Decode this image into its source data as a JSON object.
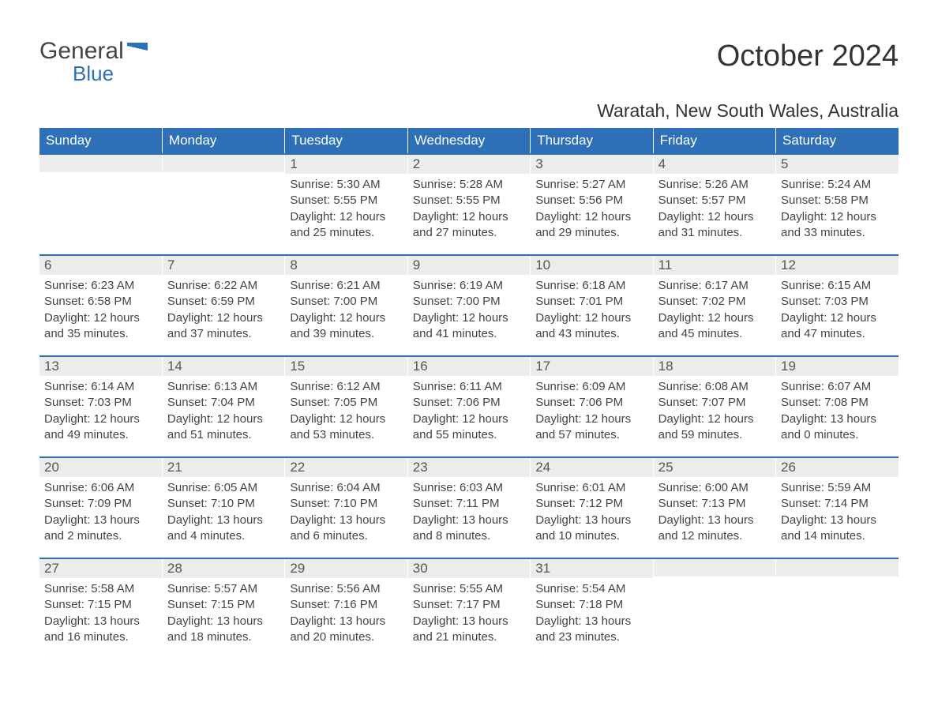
{
  "logo": {
    "general": "General",
    "blue": "Blue",
    "flag_color": "#2d70b7"
  },
  "title": "October 2024",
  "location": "Waratah, New South Wales, Australia",
  "colors": {
    "header_bg": "#2d70b7",
    "header_text": "#ffffff",
    "daynum_bg": "#ececec",
    "body_text": "#444444",
    "border_top": "#2d70b7",
    "background": "#ffffff"
  },
  "weekdays": [
    "Sunday",
    "Monday",
    "Tuesday",
    "Wednesday",
    "Thursday",
    "Friday",
    "Saturday"
  ],
  "labels": {
    "sunrise": "Sunrise: ",
    "sunset": "Sunset: ",
    "daylight": "Daylight: "
  },
  "weeks": [
    [
      {
        "day": "",
        "sunrise": "",
        "sunset": "",
        "daylight": ""
      },
      {
        "day": "",
        "sunrise": "",
        "sunset": "",
        "daylight": ""
      },
      {
        "day": "1",
        "sunrise": "5:30 AM",
        "sunset": "5:55 PM",
        "daylight": "12 hours and 25 minutes."
      },
      {
        "day": "2",
        "sunrise": "5:28 AM",
        "sunset": "5:55 PM",
        "daylight": "12 hours and 27 minutes."
      },
      {
        "day": "3",
        "sunrise": "5:27 AM",
        "sunset": "5:56 PM",
        "daylight": "12 hours and 29 minutes."
      },
      {
        "day": "4",
        "sunrise": "5:26 AM",
        "sunset": "5:57 PM",
        "daylight": "12 hours and 31 minutes."
      },
      {
        "day": "5",
        "sunrise": "5:24 AM",
        "sunset": "5:58 PM",
        "daylight": "12 hours and 33 minutes."
      }
    ],
    [
      {
        "day": "6",
        "sunrise": "6:23 AM",
        "sunset": "6:58 PM",
        "daylight": "12 hours and 35 minutes."
      },
      {
        "day": "7",
        "sunrise": "6:22 AM",
        "sunset": "6:59 PM",
        "daylight": "12 hours and 37 minutes."
      },
      {
        "day": "8",
        "sunrise": "6:21 AM",
        "sunset": "7:00 PM",
        "daylight": "12 hours and 39 minutes."
      },
      {
        "day": "9",
        "sunrise": "6:19 AM",
        "sunset": "7:00 PM",
        "daylight": "12 hours and 41 minutes."
      },
      {
        "day": "10",
        "sunrise": "6:18 AM",
        "sunset": "7:01 PM",
        "daylight": "12 hours and 43 minutes."
      },
      {
        "day": "11",
        "sunrise": "6:17 AM",
        "sunset": "7:02 PM",
        "daylight": "12 hours and 45 minutes."
      },
      {
        "day": "12",
        "sunrise": "6:15 AM",
        "sunset": "7:03 PM",
        "daylight": "12 hours and 47 minutes."
      }
    ],
    [
      {
        "day": "13",
        "sunrise": "6:14 AM",
        "sunset": "7:03 PM",
        "daylight": "12 hours and 49 minutes."
      },
      {
        "day": "14",
        "sunrise": "6:13 AM",
        "sunset": "7:04 PM",
        "daylight": "12 hours and 51 minutes."
      },
      {
        "day": "15",
        "sunrise": "6:12 AM",
        "sunset": "7:05 PM",
        "daylight": "12 hours and 53 minutes."
      },
      {
        "day": "16",
        "sunrise": "6:11 AM",
        "sunset": "7:06 PM",
        "daylight": "12 hours and 55 minutes."
      },
      {
        "day": "17",
        "sunrise": "6:09 AM",
        "sunset": "7:06 PM",
        "daylight": "12 hours and 57 minutes."
      },
      {
        "day": "18",
        "sunrise": "6:08 AM",
        "sunset": "7:07 PM",
        "daylight": "12 hours and 59 minutes."
      },
      {
        "day": "19",
        "sunrise": "6:07 AM",
        "sunset": "7:08 PM",
        "daylight": "13 hours and 0 minutes."
      }
    ],
    [
      {
        "day": "20",
        "sunrise": "6:06 AM",
        "sunset": "7:09 PM",
        "daylight": "13 hours and 2 minutes."
      },
      {
        "day": "21",
        "sunrise": "6:05 AM",
        "sunset": "7:10 PM",
        "daylight": "13 hours and 4 minutes."
      },
      {
        "day": "22",
        "sunrise": "6:04 AM",
        "sunset": "7:10 PM",
        "daylight": "13 hours and 6 minutes."
      },
      {
        "day": "23",
        "sunrise": "6:03 AM",
        "sunset": "7:11 PM",
        "daylight": "13 hours and 8 minutes."
      },
      {
        "day": "24",
        "sunrise": "6:01 AM",
        "sunset": "7:12 PM",
        "daylight": "13 hours and 10 minutes."
      },
      {
        "day": "25",
        "sunrise": "6:00 AM",
        "sunset": "7:13 PM",
        "daylight": "13 hours and 12 minutes."
      },
      {
        "day": "26",
        "sunrise": "5:59 AM",
        "sunset": "7:14 PM",
        "daylight": "13 hours and 14 minutes."
      }
    ],
    [
      {
        "day": "27",
        "sunrise": "5:58 AM",
        "sunset": "7:15 PM",
        "daylight": "13 hours and 16 minutes."
      },
      {
        "day": "28",
        "sunrise": "5:57 AM",
        "sunset": "7:15 PM",
        "daylight": "13 hours and 18 minutes."
      },
      {
        "day": "29",
        "sunrise": "5:56 AM",
        "sunset": "7:16 PM",
        "daylight": "13 hours and 20 minutes."
      },
      {
        "day": "30",
        "sunrise": "5:55 AM",
        "sunset": "7:17 PM",
        "daylight": "13 hours and 21 minutes."
      },
      {
        "day": "31",
        "sunrise": "5:54 AM",
        "sunset": "7:18 PM",
        "daylight": "13 hours and 23 minutes."
      },
      {
        "day": "",
        "sunrise": "",
        "sunset": "",
        "daylight": ""
      },
      {
        "day": "",
        "sunrise": "",
        "sunset": "",
        "daylight": ""
      }
    ]
  ]
}
